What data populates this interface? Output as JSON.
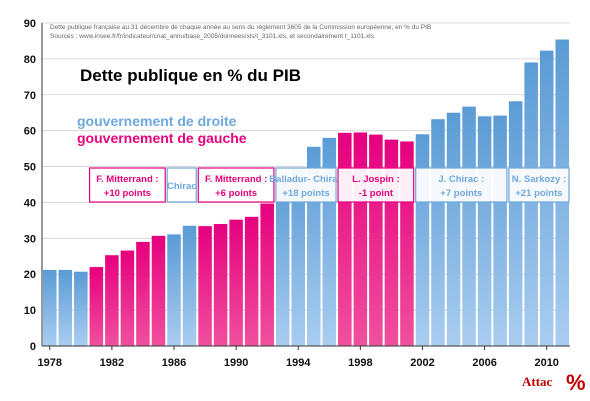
{
  "chart_data": {
    "type": "bar",
    "title": "Dette publique en % du PIB",
    "notes": [
      "Dette publique française au 31 décembre de chaque année au sens du règlement 3605 de la Commission européenne, en % du PIB",
      "Sources : www.insee.fr/fr/indicateur/cnat_annu/base_2005/donnees/xls/t_3101.xls, et secondairement t_1101.xls"
    ],
    "legend": [
      {
        "label": "gouvernement de droite",
        "color": "#6fa8dc"
      },
      {
        "label": "gouvernement de gauche",
        "color": "#e6007e"
      }
    ],
    "ylim": [
      0,
      90
    ],
    "yticks": [
      "0",
      "10",
      "20",
      "30",
      "40",
      "50",
      "60",
      "70",
      "80",
      "90"
    ],
    "xticks": [
      "1978",
      "1982",
      "1986",
      "1990",
      "1994",
      "1998",
      "2002",
      "2006",
      "2010"
    ],
    "grid": true,
    "x": [
      1978,
      1979,
      1980,
      1981,
      1982,
      1983,
      1984,
      1985,
      1986,
      1987,
      1988,
      1989,
      1990,
      1991,
      1992,
      1993,
      1994,
      1995,
      1996,
      1997,
      1998,
      1999,
      2000,
      2001,
      2002,
      2003,
      2004,
      2005,
      2006,
      2007,
      2008,
      2009,
      2010,
      2011
    ],
    "values": [
      21.2,
      21.2,
      20.7,
      22.0,
      25.3,
      26.6,
      29.0,
      30.7,
      31.1,
      33.5,
      33.4,
      34.0,
      35.2,
      36.0,
      39.7,
      46.2,
      49.4,
      55.5,
      58.0,
      59.4,
      59.5,
      58.9,
      57.5,
      57.0,
      59.0,
      63.2,
      65.0,
      66.7,
      64.0,
      64.2,
      68.2,
      79.0,
      82.3,
      85.4
    ],
    "governments": [
      "droite",
      "droite",
      "droite",
      "gauche",
      "gauche",
      "gauche",
      "gauche",
      "gauche",
      "droite",
      "droite",
      "gauche",
      "gauche",
      "gauche",
      "gauche",
      "gauche",
      "droite",
      "droite",
      "droite",
      "droite",
      "gauche",
      "gauche",
      "gauche",
      "gauche",
      "gauche",
      "droite",
      "droite",
      "droite",
      "droite",
      "droite",
      "droite",
      "droite",
      "droite",
      "droite",
      "droite"
    ],
    "annotations": [
      {
        "line1": "F. Mitterrand :",
        "line2": "+10 points",
        "side": "gauche",
        "from": 1981,
        "to": 1985
      },
      {
        "line1": "Chirac",
        "line2": "",
        "side": "droite",
        "from": 1986,
        "to": 1987
      },
      {
        "line1": "F. Mitterrand :",
        "line2": "+6 points",
        "side": "gauche",
        "from": 1988,
        "to": 1992
      },
      {
        "line1": "Balladur- Chirac",
        "line2": "+18 points",
        "side": "droite",
        "from": 1993,
        "to": 1996
      },
      {
        "line1": "L. Jospin :",
        "line2": "-1 point",
        "side": "gauche",
        "from": 1997,
        "to": 2001
      },
      {
        "line1": "J. Chirac :",
        "line2": "+7 points",
        "side": "droite",
        "from": 2002,
        "to": 2007
      },
      {
        "line1": "N. Sarkozy :",
        "line2": "+21 points",
        "side": "droite",
        "from": 2008,
        "to": 2011
      }
    ]
  },
  "logo": {
    "text": "Attac",
    "symbol": "%"
  }
}
